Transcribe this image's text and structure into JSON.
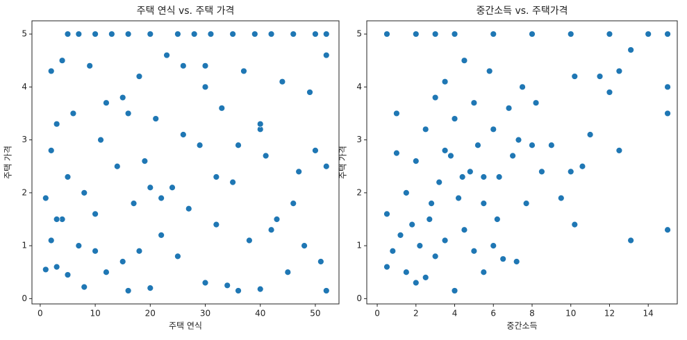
{
  "chart_data": [
    {
      "type": "scatter",
      "title": "주택 연식 vs. 주택 가격",
      "x_label": "주택 연식",
      "y_label": "주택 가격",
      "color": "#1f77b4",
      "xlim": [
        -1.5,
        54.3
      ],
      "ylim": [
        -0.1,
        5.25
      ],
      "xticks": [
        0,
        10,
        20,
        30,
        40,
        50
      ],
      "yticks": [
        0,
        1,
        2,
        3,
        4,
        5
      ],
      "x": [
        1,
        1,
        2,
        2,
        2,
        3,
        3,
        4,
        4,
        5,
        5,
        5,
        6,
        7,
        7,
        8,
        8,
        9,
        10,
        10,
        11,
        12,
        13,
        14,
        15,
        15,
        16,
        16,
        17,
        18,
        18,
        19,
        20,
        20,
        21,
        22,
        23,
        24,
        25,
        25,
        26,
        27,
        28,
        29,
        30,
        30,
        31,
        32,
        33,
        34,
        35,
        35,
        36,
        37,
        38,
        39,
        40,
        40,
        41,
        42,
        43,
        44,
        45,
        46,
        47,
        48,
        49,
        50,
        51,
        52,
        52,
        52,
        52,
        3,
        10,
        20,
        30,
        40,
        50,
        12,
        22,
        32,
        42,
        8,
        16,
        36,
        46,
        26
      ],
      "values": [
        1.9,
        0.55,
        2.8,
        1.1,
        4.3,
        3.3,
        0.6,
        4.5,
        1.5,
        5,
        2.3,
        0.45,
        3.5,
        5,
        1.0,
        2.0,
        0.22,
        4.4,
        5,
        1.6,
        3.0,
        0.5,
        5,
        2.5,
        0.7,
        3.8,
        5,
        0.15,
        1.8,
        4.2,
        0.9,
        2.6,
        5,
        0.2,
        3.4,
        1.2,
        4.6,
        2.1,
        5,
        0.8,
        3.1,
        1.7,
        5,
        2.9,
        0.3,
        4.0,
        5,
        1.4,
        3.6,
        0.25,
        5,
        2.2,
        0.15,
        4.3,
        1.1,
        5,
        3.2,
        0.18,
        2.7,
        5,
        1.5,
        4.1,
        0.5,
        5,
        2.4,
        1.0,
        3.9,
        5,
        0.7,
        5,
        0.15,
        2.5,
        4.6,
        1.5,
        0.9,
        2.1,
        4.4,
        3.3,
        2.8,
        3.7,
        1.9,
        2.3,
        1.3,
        2.0,
        3.5,
        2.9,
        1.8,
        4.4
      ]
    },
    {
      "type": "scatter",
      "title": "중간소득 vs. 주택가격",
      "x_label": "중간소득",
      "y_label": "주택 가격",
      "color": "#1f77b4",
      "xlim": [
        -0.54,
        15.5
      ],
      "ylim": [
        -0.1,
        5.25
      ],
      "xticks": [
        0,
        2,
        4,
        6,
        8,
        10,
        12,
        14
      ],
      "yticks": [
        0,
        1,
        2,
        3,
        4,
        5
      ],
      "x": [
        0.5,
        0.5,
        0.5,
        0.8,
        1.0,
        1.2,
        1.5,
        1.5,
        1.8,
        2.0,
        2.0,
        2.2,
        2.5,
        2.5,
        2.8,
        3.0,
        3.0,
        3.2,
        3.5,
        3.5,
        3.8,
        4.0,
        4.0,
        4.2,
        4.5,
        4.5,
        4.8,
        5.0,
        5.0,
        5.2,
        5.5,
        5.5,
        5.8,
        6.0,
        6.0,
        6.3,
        6.5,
        6.8,
        7.0,
        7.2,
        7.5,
        7.7,
        8.0,
        8.2,
        8.5,
        9.0,
        9.5,
        10.0,
        10.2,
        10.2,
        10.6,
        11.0,
        11.5,
        12.0,
        12.5,
        12.5,
        13.1,
        13.1,
        15,
        15,
        15,
        15,
        2,
        3,
        4,
        6,
        8,
        10,
        12,
        14,
        1.0,
        3.5,
        5.5,
        7.3,
        2.7,
        4.4,
        6.2
      ],
      "values": [
        0.6,
        1.6,
        5,
        0.9,
        3.5,
        1.2,
        0.5,
        2.0,
        1.4,
        0.3,
        2.6,
        1.0,
        0.4,
        3.2,
        1.8,
        0.8,
        3.8,
        2.2,
        1.1,
        4.1,
        2.7,
        0.15,
        3.4,
        1.9,
        1.3,
        4.5,
        2.4,
        0.9,
        3.7,
        2.9,
        0.5,
        1.8,
        4.3,
        3.2,
        1.0,
        2.3,
        0.75,
        3.6,
        2.7,
        0.7,
        4.0,
        1.8,
        2.9,
        3.7,
        2.4,
        2.9,
        1.9,
        2.4,
        1.4,
        4.2,
        2.5,
        3.1,
        4.2,
        3.9,
        4.3,
        2.8,
        4.7,
        1.1,
        5,
        4.0,
        3.5,
        1.3,
        5,
        5,
        5,
        5,
        5,
        5,
        5,
        5,
        2.75,
        2.8,
        2.3,
        3.0,
        1.5,
        2.3,
        1.5
      ]
    }
  ]
}
